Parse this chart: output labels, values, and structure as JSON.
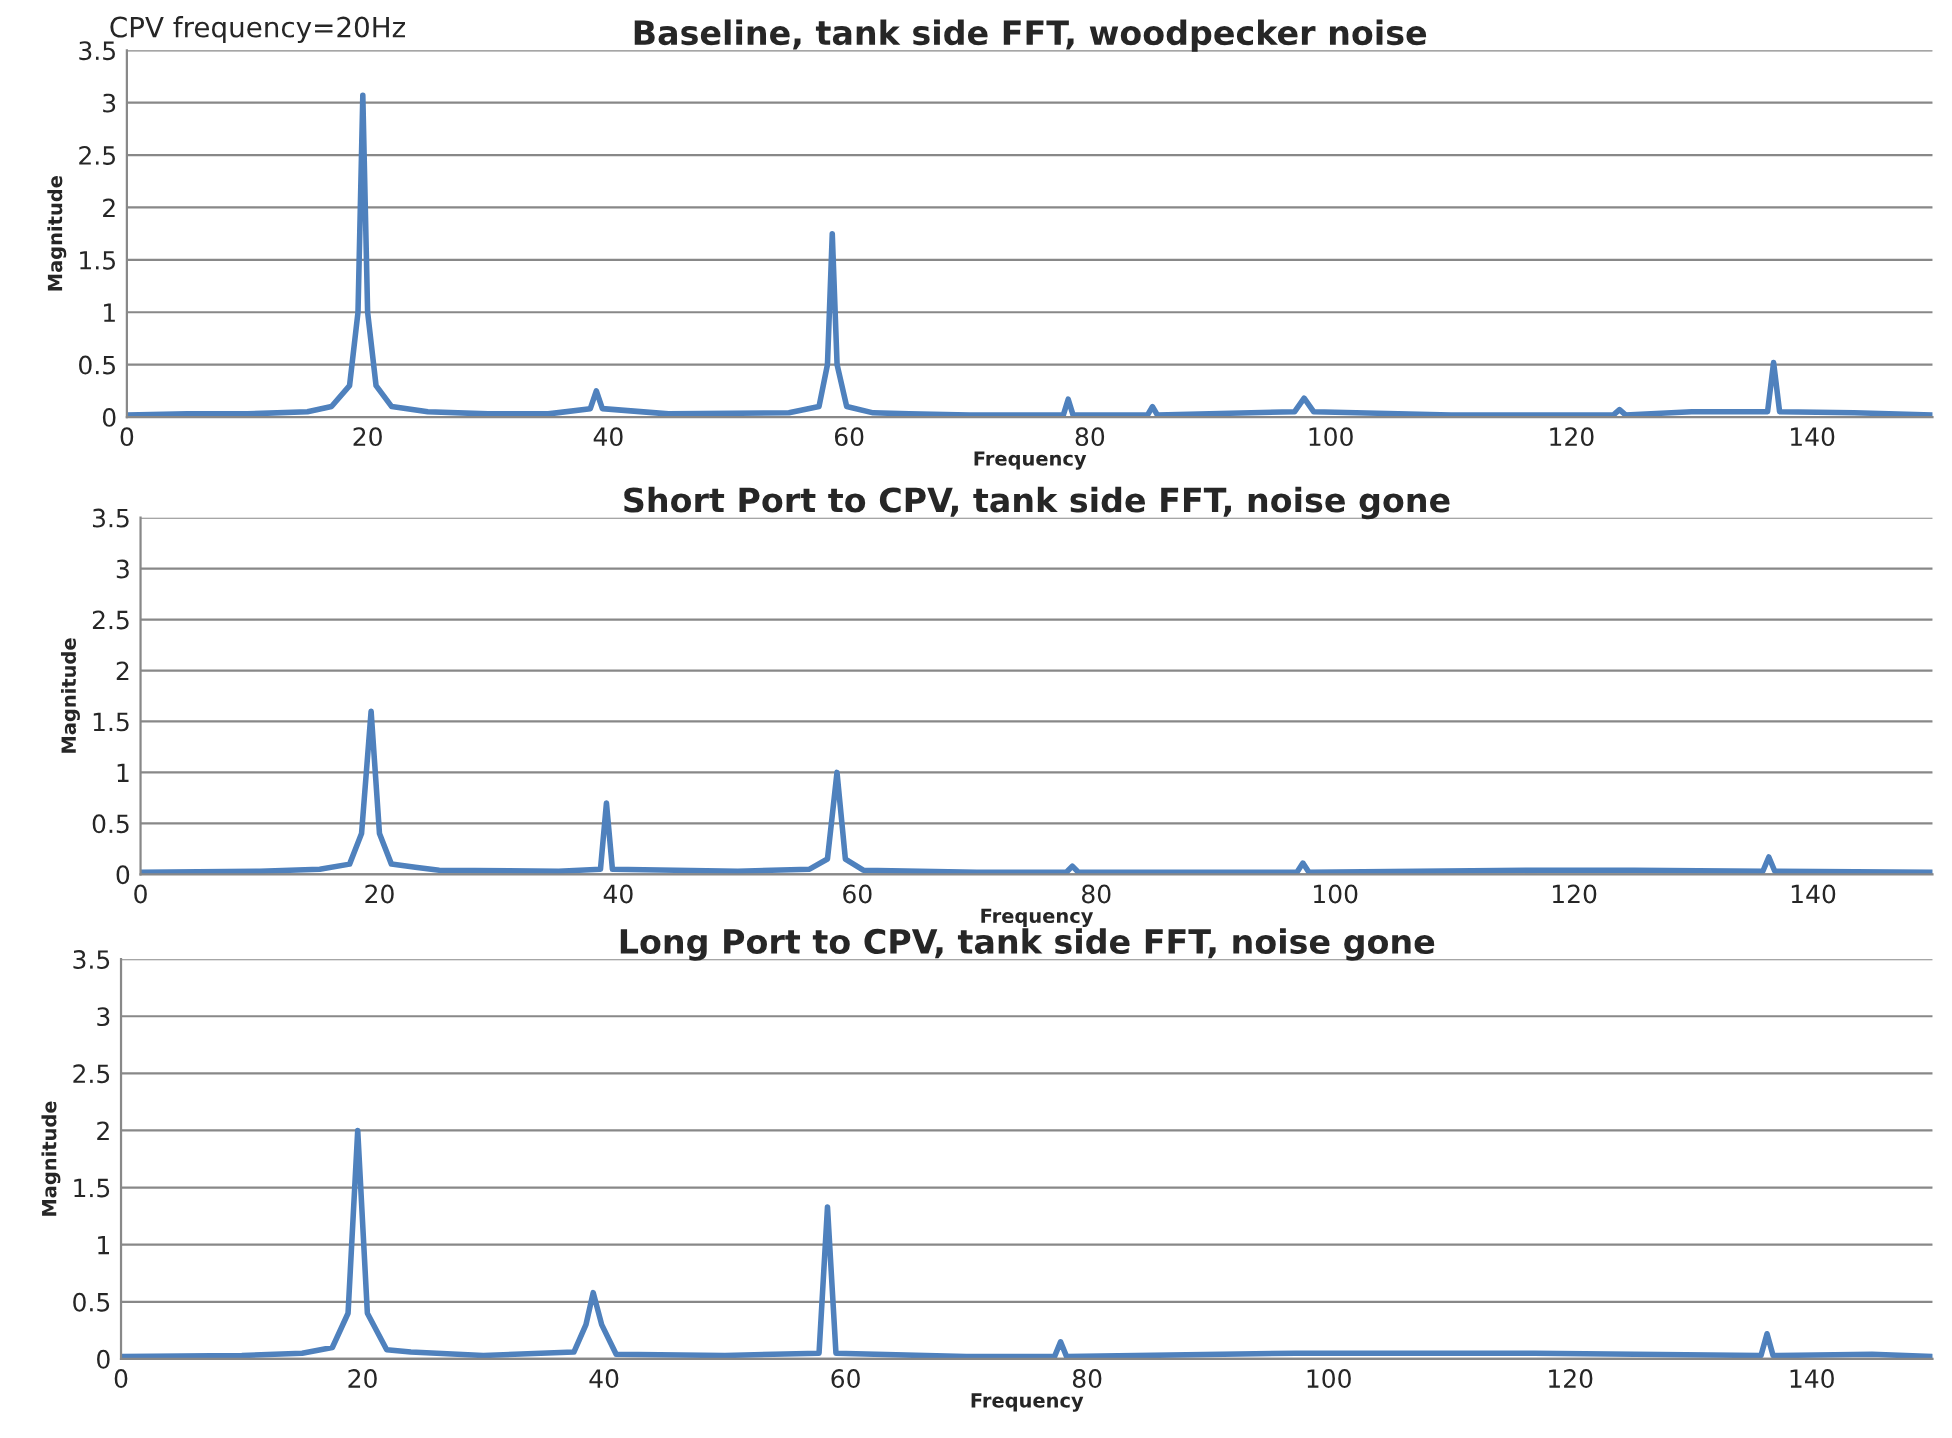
{
  "chart_data": [
    {
      "type": "line",
      "title": "Baseline, tank side FFT, woodpecker noise",
      "xlabel": "Frequency",
      "ylabel": "Magnitude",
      "annotations": [
        "CPV frequency=20Hz"
      ],
      "xlim": [
        0,
        150
      ],
      "ylim": [
        0,
        3.5
      ],
      "xticks": [
        0,
        20,
        40,
        60,
        80,
        100,
        120,
        140
      ],
      "yticks": [
        0,
        0.5,
        1,
        1.5,
        2,
        2.5,
        3,
        3.5
      ],
      "grid": "y",
      "legend": false,
      "series": [
        {
          "color": "#4f81bd",
          "x": [
            0,
            5,
            10,
            15,
            17,
            18.5,
            19.2,
            19.6,
            20.0,
            20.7,
            22,
            25,
            30,
            35,
            38.5,
            39,
            39.5,
            45,
            55,
            57.5,
            58.2,
            58.6,
            59,
            59.8,
            62,
            65,
            70,
            77.8,
            78.2,
            78.6,
            84.8,
            85.2,
            85.6,
            97,
            97.8,
            98.6,
            110,
            123.5,
            124,
            124.5,
            130,
            136.3,
            136.8,
            137.3,
            143.5,
            150
          ],
          "values": [
            0.02,
            0.03,
            0.03,
            0.05,
            0.1,
            0.3,
            1.0,
            3.07,
            1.0,
            0.3,
            0.1,
            0.05,
            0.03,
            0.03,
            0.08,
            0.25,
            0.08,
            0.03,
            0.04,
            0.1,
            0.5,
            1.75,
            0.5,
            0.1,
            0.04,
            0.03,
            0.02,
            0.02,
            0.17,
            0.02,
            0.02,
            0.1,
            0.02,
            0.05,
            0.18,
            0.05,
            0.02,
            0.02,
            0.07,
            0.02,
            0.05,
            0.05,
            0.52,
            0.05,
            0.04,
            0.02
          ]
        }
      ]
    },
    {
      "type": "line",
      "title": "Short Port to CPV, tank side FFT, noise gone",
      "xlabel": "Frequency",
      "ylabel": "Magnitude",
      "xlim": [
        0,
        150
      ],
      "ylim": [
        0,
        3.5
      ],
      "xticks": [
        0,
        20,
        40,
        60,
        80,
        100,
        120,
        140
      ],
      "yticks": [
        0,
        0.5,
        1,
        1.5,
        2,
        2.5,
        3,
        3.5
      ],
      "grid": "y",
      "legend": false,
      "series": [
        {
          "color": "#4f81bd",
          "x": [
            0,
            10,
            15,
            17.5,
            18.5,
            19.3,
            20,
            21,
            23,
            25,
            35,
            38.5,
            39,
            39.5,
            50,
            56,
            57.5,
            58.3,
            59,
            60.5,
            70,
            77.5,
            78,
            78.5,
            96.8,
            97.3,
            97.8,
            117,
            125,
            135.8,
            136.3,
            136.8,
            150
          ],
          "values": [
            0.02,
            0.03,
            0.05,
            0.1,
            0.4,
            1.6,
            0.4,
            0.1,
            0.07,
            0.04,
            0.03,
            0.05,
            0.7,
            0.05,
            0.03,
            0.05,
            0.15,
            1.0,
            0.15,
            0.04,
            0.02,
            0.02,
            0.08,
            0.02,
            0.02,
            0.11,
            0.02,
            0.04,
            0.04,
            0.03,
            0.17,
            0.03,
            0.02
          ]
        }
      ]
    },
    {
      "type": "line",
      "title": "Long Port to CPV, tank side FFT, noise gone",
      "xlabel": "Frequency",
      "ylabel": "Magnitude",
      "xlim": [
        0,
        150
      ],
      "ylim": [
        0,
        3.5
      ],
      "xticks": [
        0,
        20,
        40,
        60,
        80,
        100,
        120,
        140
      ],
      "yticks": [
        0,
        0.5,
        1,
        1.5,
        2,
        2.5,
        3,
        3.5
      ],
      "grid": "y",
      "legend": false,
      "series": [
        {
          "color": "#4f81bd",
          "x": [
            0,
            10,
            15,
            17.5,
            18.8,
            19.6,
            20.4,
            22,
            24,
            30,
            37.5,
            38.5,
            39.1,
            39.8,
            41,
            50,
            57.8,
            58.5,
            59.2,
            70,
            77.3,
            77.8,
            78.3,
            97.3,
            117,
            135.8,
            136.3,
            136.8,
            145,
            150
          ],
          "values": [
            0.02,
            0.03,
            0.05,
            0.1,
            0.4,
            2.0,
            0.4,
            0.08,
            0.06,
            0.03,
            0.06,
            0.3,
            0.58,
            0.3,
            0.04,
            0.03,
            0.05,
            1.33,
            0.05,
            0.02,
            0.02,
            0.15,
            0.02,
            0.05,
            0.05,
            0.03,
            0.22,
            0.03,
            0.04,
            0.02
          ]
        }
      ]
    }
  ]
}
